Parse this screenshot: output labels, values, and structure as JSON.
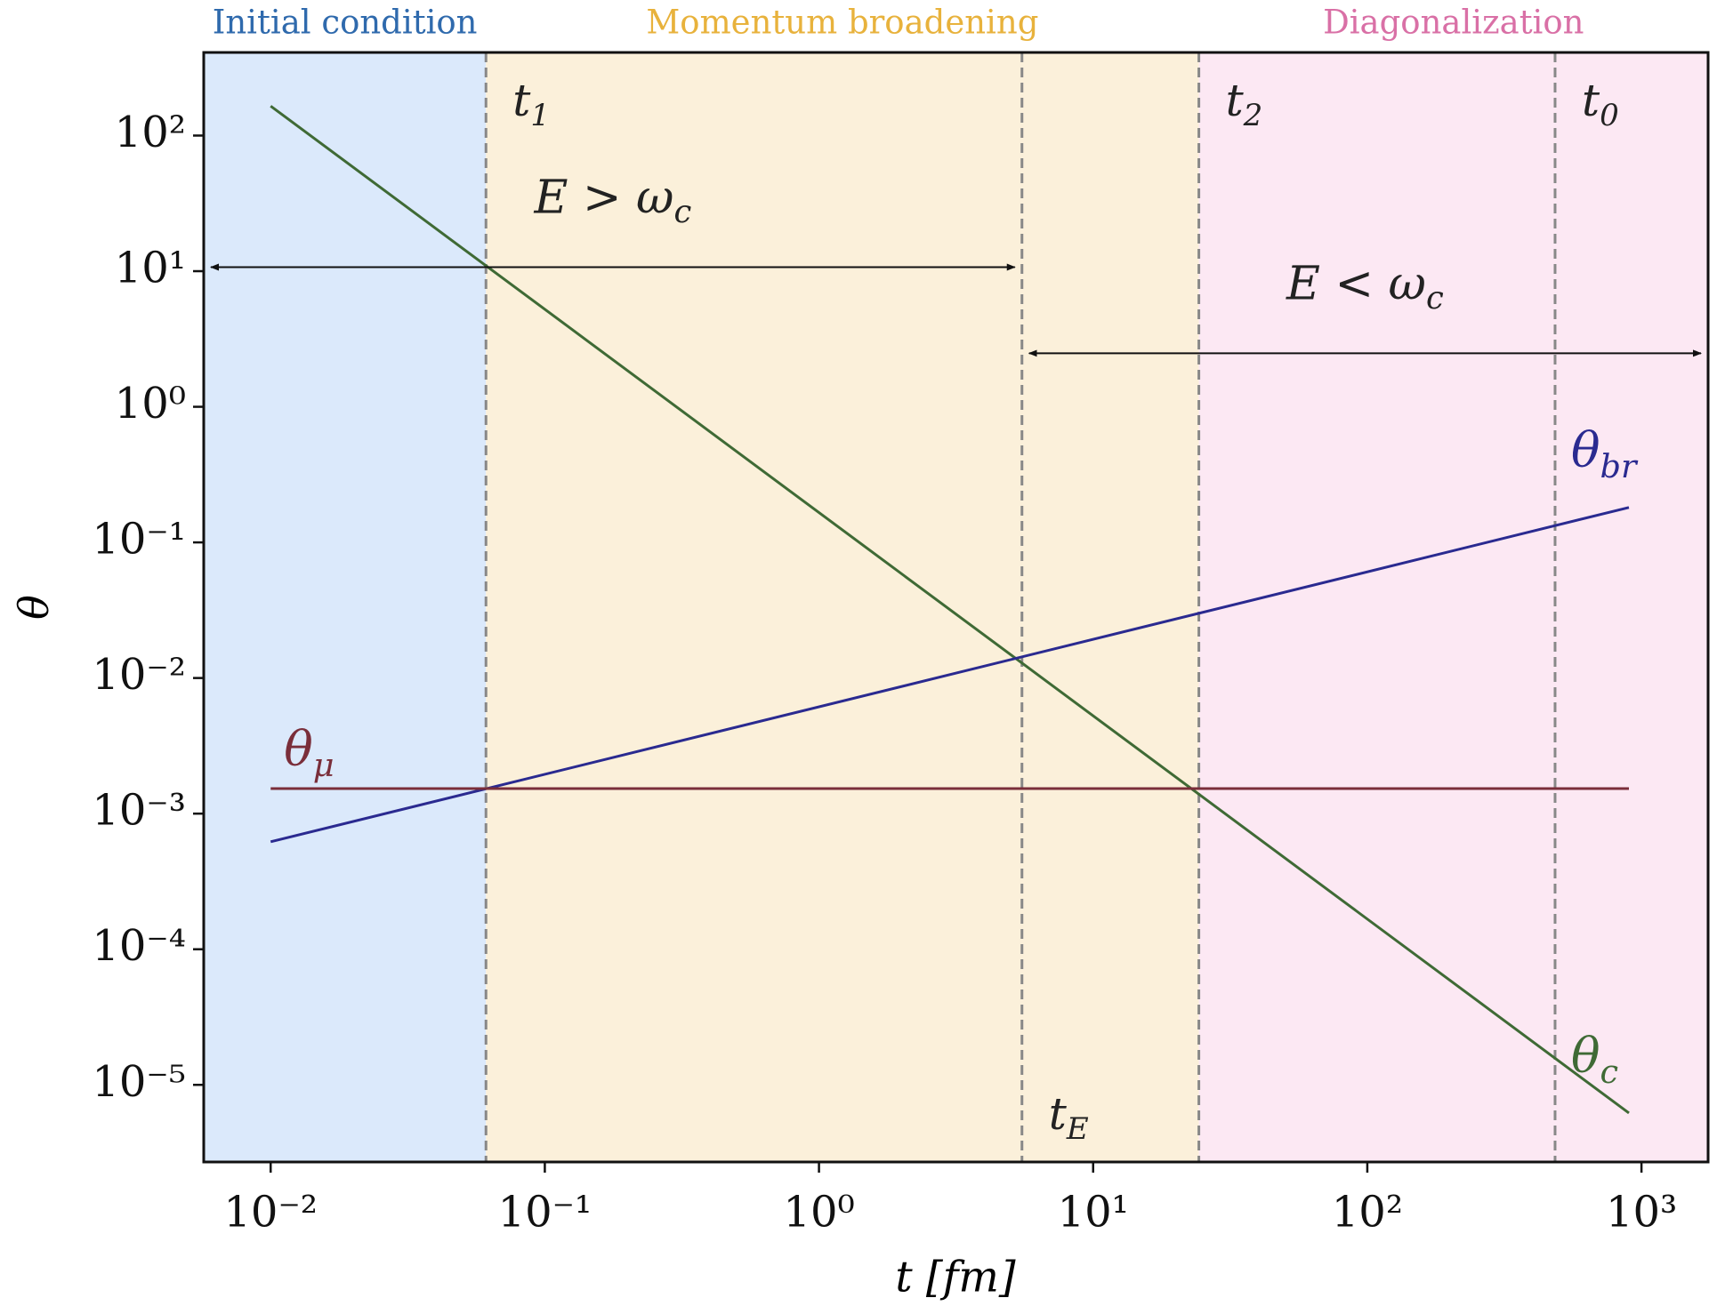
{
  "chart_data": {
    "type": "line",
    "xlabel": "t [fm]",
    "ylabel": "θ",
    "xscale": "log",
    "yscale": "log",
    "xlim": [
      0.0057,
      1750
    ],
    "ylim": [
      2.7e-06,
      410
    ],
    "xticks": [
      {
        "value": 0.01,
        "label": "10⁻²"
      },
      {
        "value": 0.1,
        "label": "10⁻¹"
      },
      {
        "value": 1,
        "label": "10⁰"
      },
      {
        "value": 10,
        "label": "10¹"
      },
      {
        "value": 100,
        "label": "10²"
      },
      {
        "value": 1000,
        "label": "10³"
      }
    ],
    "yticks": [
      {
        "value": 1e-05,
        "label": "10⁻⁵"
      },
      {
        "value": 0.0001,
        "label": "10⁻⁴"
      },
      {
        "value": 0.001,
        "label": "10⁻³"
      },
      {
        "value": 0.01,
        "label": "10⁻²"
      },
      {
        "value": 0.1,
        "label": "10⁻¹"
      },
      {
        "value": 1,
        "label": "10⁰"
      },
      {
        "value": 10,
        "label": "10¹"
      },
      {
        "value": 100,
        "label": "10²"
      }
    ],
    "regions": [
      {
        "name": "Initial condition",
        "x": [
          0.0057,
          0.061
        ],
        "color": "#dbe9fb",
        "label_color": "#2f6aad"
      },
      {
        "name": "Momentum broadening",
        "x": [
          0.061,
          24.3
        ],
        "color": "#fbf0da",
        "label_color": "#e8b23c"
      },
      {
        "name": "Diagonalization",
        "x": [
          24.3,
          1750
        ],
        "color": "#fce8f3",
        "label_color": "#d970a6"
      }
    ],
    "vlines": [
      {
        "symbol": "t",
        "sub": "1",
        "x": 0.061,
        "label_at": "top"
      },
      {
        "symbol": "t",
        "sub": "E",
        "x": 5.5,
        "label_at": "bottom"
      },
      {
        "symbol": "t",
        "sub": "2",
        "x": 24.3,
        "label_at": "top"
      },
      {
        "symbol": "t",
        "sub": "0",
        "x": 484,
        "label_at": "top"
      }
    ],
    "arrows": [
      {
        "text": "E > ω",
        "sub": "c",
        "x": [
          0.0057,
          5.5
        ],
        "y": 10.7
      },
      {
        "text": "E < ω",
        "sub": "c",
        "x": [
          5.5,
          1750
        ],
        "y": 2.48
      }
    ],
    "series": [
      {
        "symbol": "θ",
        "sub": "c",
        "color": "#3f6a35",
        "x": [
          0.01,
          900
        ],
        "values": [
          165,
          6.2e-06
        ],
        "label_at": "end"
      },
      {
        "symbol": "θ",
        "sub": "br",
        "color": "#2a2a90",
        "x": [
          0.01,
          900
        ],
        "values": [
          0.00062,
          0.181
        ],
        "label_at": "end"
      },
      {
        "symbol": "θ",
        "sub": "μ",
        "color": "#7a2e3a",
        "x": [
          0.01,
          900
        ],
        "values": [
          0.00153,
          0.00153
        ],
        "label_at": "start"
      }
    ]
  }
}
